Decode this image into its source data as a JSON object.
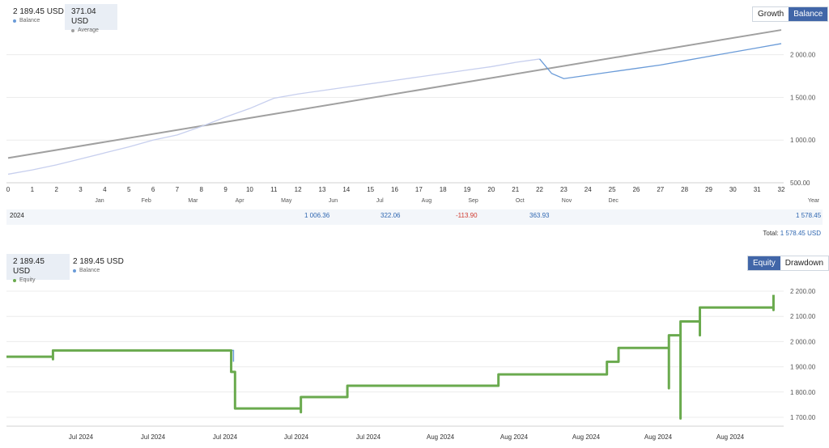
{
  "chart_data": [
    {
      "type": "line",
      "x_ticks": [
        "0",
        "1",
        "2",
        "3",
        "4",
        "5",
        "6",
        "7",
        "8",
        "9",
        "10",
        "11",
        "12",
        "13",
        "14",
        "15",
        "16",
        "17",
        "18",
        "19",
        "20",
        "21",
        "22",
        "23",
        "24",
        "25",
        "26",
        "27",
        "28",
        "29",
        "30",
        "31",
        "32"
      ],
      "months": [
        "Jan",
        "Feb",
        "Mar",
        "Apr",
        "May",
        "Jun",
        "Jul",
        "Aug",
        "Sep",
        "Oct",
        "Nov",
        "Dec",
        "Year"
      ],
      "ylim": [
        500,
        2300
      ],
      "y_ticks": [
        "500.00",
        "1 000.00",
        "1 500.00",
        "2 000.00"
      ],
      "y_tick_values": [
        500,
        1000,
        1500,
        2000
      ],
      "series": [
        {
          "name": "Balance",
          "color": "#6a9bd8",
          "x": [
            0,
            1,
            2,
            3,
            4,
            5,
            6,
            7,
            8,
            9,
            10,
            11,
            12,
            13,
            14,
            15,
            16,
            17,
            18,
            19,
            20,
            21,
            22,
            22.5,
            23,
            24,
            25,
            26,
            27,
            28,
            29,
            30,
            31,
            32
          ],
          "y": [
            600,
            650,
            710,
            780,
            850,
            920,
            1000,
            1060,
            1160,
            1270,
            1370,
            1490,
            1540,
            1580,
            1620,
            1660,
            1700,
            1740,
            1780,
            1820,
            1860,
            1910,
            1950,
            1780,
            1720,
            1760,
            1800,
            1840,
            1880,
            1930,
            1980,
            2030,
            2080,
            2130
          ]
        },
        {
          "name": "Average",
          "color": "#a0a0a0",
          "x": [
            0,
            32
          ],
          "y": [
            790,
            2290
          ]
        }
      ]
    },
    {
      "type": "line",
      "x_ticks": [
        "Jul 2024",
        "Jul 2024",
        "Jul 2024",
        "Jul 2024",
        "Jul 2024",
        "Aug 2024",
        "Aug 2024",
        "Aug 2024",
        "Aug 2024",
        "Aug 2024"
      ],
      "ylim": [
        1650,
        2220
      ],
      "y_ticks": [
        "1 700.00",
        "1 800.00",
        "1 900.00",
        "2 000.00",
        "2 100.00",
        "2 200.00"
      ],
      "y_tick_values": [
        1700,
        1800,
        1900,
        2000,
        2100,
        2200
      ],
      "series": [
        {
          "name": "Equity",
          "color": "#6aaa4e",
          "x": [
            0,
            0.06,
            0.06,
            0.06,
            0.29,
            0.29,
            0.29,
            0.29,
            0.295,
            0.295,
            0.295,
            0.38,
            0.38,
            0.38,
            0.38,
            0.44,
            0.44,
            0.635,
            0.635,
            0.775,
            0.775,
            0.79,
            0.79,
            0.855,
            0.855,
            0.855,
            0.86,
            0.86,
            0.87,
            0.87,
            0.87,
            0.873,
            0.873,
            0.895,
            0.895,
            0.895,
            0.99,
            0.99,
            0.99
          ],
          "y": [
            1940,
            1940,
            1930,
            1965,
            1965,
            1935,
            1955,
            1880,
            1880,
            1800,
            1735,
            1735,
            1720,
            1780,
            1780,
            1780,
            1825,
            1825,
            1870,
            1870,
            1920,
            1920,
            1975,
            1975,
            1815,
            2025,
            2025,
            2025,
            2025,
            1695,
            2080,
            2080,
            2080,
            2080,
            2025,
            2135,
            2135,
            2125,
            2185
          ]
        },
        {
          "name": "Balance",
          "color": "#6a9bd8",
          "x": [
            0.29,
            0.293,
            0.293
          ],
          "y": [
            1965,
            1965,
            1920
          ]
        }
      ]
    }
  ],
  "top": {
    "legend": [
      {
        "value": "2 189.45 USD",
        "label": "Balance",
        "color": "#6a9bd8"
      },
      {
        "value": "371.04 USD",
        "label": "Average",
        "color": "#a0a0a0"
      }
    ],
    "toggle": [
      "Growth",
      "Balance"
    ],
    "year_row": {
      "year": "2024",
      "apr": "1 006.36",
      "may": "322.06",
      "jun": "-113.90",
      "jul": "363.93",
      "year_total": "1 578.45"
    },
    "total_label": "Total:",
    "total_value": "1 578.45 USD"
  },
  "bottom": {
    "legend": [
      {
        "value": "2 189.45 USD",
        "label": "Equity",
        "color": "#6aaa4e"
      },
      {
        "value": "2 189.45 USD",
        "label": "Balance",
        "color": "#6a9bd8"
      }
    ],
    "toggle": [
      "Equity",
      "Drawdown"
    ]
  }
}
